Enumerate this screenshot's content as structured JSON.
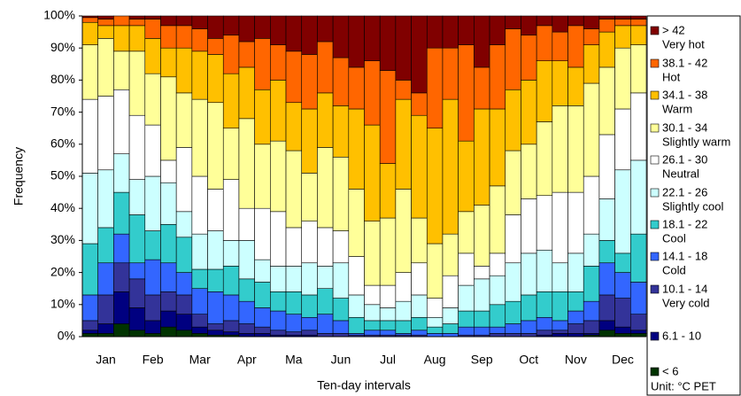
{
  "chart_data": {
    "type": "stacked_bar",
    "x_label": "Ten-day intervals",
    "y_label": "Frequency",
    "unit_note": "Unit: °C PET",
    "categories": [
      null,
      "Jan",
      null,
      null,
      "Feb",
      null,
      null,
      "Mar",
      null,
      null,
      "Apr",
      null,
      null,
      "Ma",
      null,
      null,
      "Jun",
      null,
      null,
      "Jul",
      null,
      null,
      "Aug",
      null,
      null,
      "Sep",
      null,
      null,
      "Oct",
      null,
      null,
      "Nov",
      null,
      null,
      "Dec",
      null
    ],
    "ylim": [
      0,
      100
    ],
    "yticks": [
      {
        "value": 0,
        "label": "0%"
      },
      {
        "value": 10,
        "label": "10%"
      },
      {
        "value": 20,
        "label": "20%"
      },
      {
        "value": 30,
        "label": "30%"
      },
      {
        "value": 40,
        "label": "40%"
      },
      {
        "value": 50,
        "label": "50%"
      },
      {
        "value": 60,
        "label": "60%"
      },
      {
        "value": 70,
        "label": "70%"
      },
      {
        "value": 80,
        "label": "80%"
      },
      {
        "value": 90,
        "label": "90%"
      },
      {
        "value": 100,
        "label": "100%"
      }
    ],
    "series": [
      {
        "name": "< 6",
        "color": "#003300",
        "values": [
          1,
          1,
          4,
          2,
          1,
          3,
          2,
          1,
          0.5,
          0.5,
          0,
          0,
          0,
          0,
          0,
          0,
          0,
          0,
          0,
          0,
          0,
          0,
          0,
          0,
          0,
          0,
          0,
          0,
          0,
          0,
          0,
          0,
          0.5,
          2,
          1,
          1
        ]
      },
      {
        "name": "6.1 - 10",
        "color": "#000080",
        "values": [
          1,
          3,
          10,
          7,
          4,
          5,
          5,
          2,
          1.5,
          1,
          1,
          1,
          0.5,
          0.5,
          0.5,
          0,
          0,
          0,
          0,
          0,
          0,
          0,
          0,
          0,
          0,
          0,
          0,
          0,
          0,
          0.5,
          1,
          1,
          0.5,
          3,
          2,
          1
        ]
      },
      {
        "name": "10.1 - 14",
        "description": "Very cold",
        "color": "#333399",
        "values": [
          3,
          9,
          9,
          9,
          8,
          6,
          6,
          4,
          2,
          3.5,
          3,
          2,
          1.5,
          1,
          1.5,
          1,
          1,
          0.5,
          0.5,
          0.5,
          0.5,
          0.5,
          0,
          0,
          0.5,
          0.5,
          1,
          1,
          1,
          1.5,
          1,
          3,
          4,
          8,
          9,
          5
        ]
      },
      {
        "name": "14.1 - 18",
        "description": "Cold",
        "color": "#3366ff",
        "values": [
          8,
          10,
          9,
          5,
          11,
          9,
          7,
          8,
          10,
          8,
          7,
          6,
          6,
          5.5,
          4,
          6,
          4,
          0.5,
          1.5,
          1.5,
          0.5,
          1.5,
          1,
          1,
          2.5,
          2.5,
          2,
          3,
          4,
          4,
          3,
          4,
          6,
          10,
          8,
          10
        ]
      },
      {
        "name": "18.1 - 22",
        "description": "Cool",
        "color": "#33cccc",
        "values": [
          16,
          11,
          13,
          15,
          9,
          12,
          11,
          6,
          7,
          9,
          7,
          8,
          6,
          7,
          7,
          8,
          7,
          5,
          3,
          3,
          4,
          4,
          2,
          3,
          5,
          5,
          7,
          7,
          8,
          8,
          9,
          6,
          11,
          7,
          6,
          15
        ]
      },
      {
        "name": "22.1 - 26",
        "description": "Slightly cool",
        "color": "#ccffff",
        "values": [
          22,
          18,
          12,
          11,
          17,
          13,
          8,
          11,
          12,
          8,
          12,
          7,
          8,
          8,
          10,
          7,
          11,
          7,
          5,
          4,
          6,
          7,
          3,
          5,
          8,
          10,
          9,
          12,
          13,
          13,
          9,
          12,
          10,
          13,
          26,
          23
        ]
      },
      {
        "name": "26.1 - 30",
        "description": "Neutral",
        "color": "#ffffff",
        "values": [
          23,
          23,
          20,
          20,
          16,
          7,
          20,
          18,
          13,
          19,
          10,
          16,
          17,
          12,
          13,
          12,
          10,
          12,
          6,
          7,
          9,
          10,
          6,
          10,
          10,
          4,
          7,
          15,
          17,
          17,
          22,
          19,
          18,
          20,
          19,
          21
        ]
      },
      {
        "name": "30.1 - 34",
        "description": "Slightly warm",
        "color": "#ffff99",
        "values": [
          17,
          18,
          12,
          20,
          16,
          26,
          17,
          24,
          27,
          16,
          28,
          20,
          22,
          24,
          15,
          25,
          23,
          21,
          20,
          21,
          26,
          14,
          17,
          13,
          13,
          19,
          21,
          20,
          17,
          23,
          27,
          27,
          29,
          21,
          19,
          15
        ]
      },
      {
        "name": "34.1 - 38",
        "description": "Warm",
        "color": "#ffc000",
        "values": [
          7,
          4,
          8,
          8,
          11,
          9,
          14,
          15,
          15,
          17,
          16,
          17,
          19,
          15,
          20,
          17,
          16,
          25,
          30,
          17,
          28,
          32,
          36,
          42,
          22,
          30,
          24,
          19,
          20,
          19,
          14,
          12,
          12,
          11,
          7,
          6
        ]
      },
      {
        "name": "38.1 - 42",
        "description": "Hot",
        "color": "#ff6600",
        "values": [
          1.5,
          2,
          3,
          2,
          6,
          7,
          7,
          7,
          5,
          12,
          8,
          16,
          11,
          16,
          17,
          16,
          15,
          13,
          20,
          29,
          6,
          7,
          25,
          16,
          30,
          13,
          20,
          19,
          14,
          11,
          9,
          13,
          5,
          4,
          2,
          2
        ]
      },
      {
        "name": "> 42",
        "description": "Very hot",
        "color": "#800000",
        "values": [
          0.5,
          1,
          0,
          1,
          1,
          3,
          3,
          4,
          7,
          6,
          8,
          7,
          9,
          11,
          12,
          8,
          13,
          16,
          14,
          17,
          20,
          24,
          10,
          10,
          9,
          16,
          9,
          4,
          6,
          3,
          5,
          3,
          4,
          1,
          1,
          1
        ]
      }
    ]
  }
}
